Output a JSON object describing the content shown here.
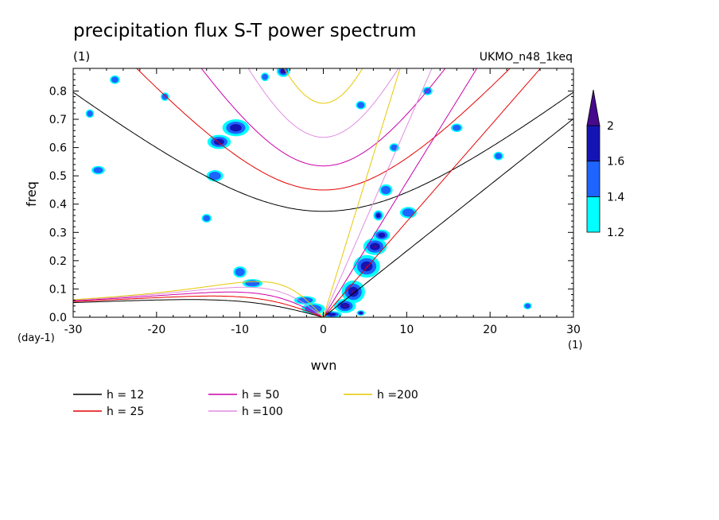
{
  "chart_data": {
    "type": "heatmap",
    "title": "precipitation flux S-T power spectrum",
    "units_label": "(1)",
    "model_label": "UKMO_n48_1keq",
    "xlabel": "wvn",
    "ylabel": "freq",
    "x_units_label": "(1)",
    "y_units_label": "(day-1)",
    "xlim": [
      -30,
      30
    ],
    "ylim": [
      0,
      0.88
    ],
    "x_ticks": [
      -30,
      -20,
      -10,
      0,
      10,
      20,
      30
    ],
    "x_tick_labels": [
      "-30",
      "-20",
      "-10",
      "0",
      "10",
      "20",
      "30"
    ],
    "y_ticks": [
      0,
      0.1,
      0.2,
      0.3,
      0.4,
      0.5,
      0.6,
      0.7,
      0.8
    ],
    "y_tick_labels": [
      "0.0",
      "0.1",
      "0.2",
      "0.3",
      "0.4",
      "0.5",
      "0.6",
      "0.7",
      "0.8"
    ],
    "colorbar": {
      "levels": [
        1.2,
        1.4,
        1.6,
        2
      ],
      "level_labels": [
        "1.2",
        "1.4",
        "1.6",
        "2"
      ],
      "colors": [
        "#00ffff",
        "#1e64ff",
        "#1414b4",
        "#460a8c"
      ]
    },
    "dispersion_curves": [
      {
        "label": "h = 12",
        "h": 12,
        "color": "#000000"
      },
      {
        "label": "h = 25",
        "h": 25,
        "color": "#e60000"
      },
      {
        "label": "h = 50",
        "h": 50,
        "color": "#cc00aa"
      },
      {
        "label": "h =100",
        "h": 100,
        "color": "#e08ce0"
      },
      {
        "label": "h =200",
        "h": 200,
        "color": "#e6c800"
      }
    ],
    "contour_blobs": [
      {
        "x": 6.2,
        "y": 0.25,
        "level": 3,
        "rx": 1.4,
        "ry": 0.03
      },
      {
        "x": 5.2,
        "y": 0.18,
        "level": 3,
        "rx": 1.6,
        "ry": 0.04
      },
      {
        "x": 3.6,
        "y": 0.09,
        "level": 3,
        "rx": 1.4,
        "ry": 0.04
      },
      {
        "x": 2.6,
        "y": 0.04,
        "level": 3,
        "rx": 1.3,
        "ry": 0.025
      },
      {
        "x": 7.0,
        "y": 0.29,
        "level": 2,
        "rx": 1.0,
        "ry": 0.02
      },
      {
        "x": 6.6,
        "y": 0.36,
        "level": 2,
        "rx": 0.6,
        "ry": 0.018
      },
      {
        "x": 10.2,
        "y": 0.37,
        "level": 1,
        "rx": 1.0,
        "ry": 0.02
      },
      {
        "x": 7.5,
        "y": 0.45,
        "level": 1,
        "rx": 0.8,
        "ry": 0.02
      },
      {
        "x": 1.0,
        "y": 0.01,
        "level": 2,
        "rx": 1.2,
        "ry": 0.012
      },
      {
        "x": -1.2,
        "y": 0.03,
        "level": 1,
        "rx": 1.4,
        "ry": 0.02
      },
      {
        "x": -2.2,
        "y": 0.06,
        "level": 1,
        "rx": 1.3,
        "ry": 0.015
      },
      {
        "x": -10.0,
        "y": 0.16,
        "level": 1,
        "rx": 0.8,
        "ry": 0.02
      },
      {
        "x": -8.5,
        "y": 0.12,
        "level": 1,
        "rx": 1.2,
        "ry": 0.015
      },
      {
        "x": -10.5,
        "y": 0.67,
        "level": 2,
        "rx": 1.6,
        "ry": 0.03
      },
      {
        "x": -12.5,
        "y": 0.62,
        "level": 2,
        "rx": 1.4,
        "ry": 0.025
      },
      {
        "x": -13.0,
        "y": 0.5,
        "level": 1,
        "rx": 1.0,
        "ry": 0.02
      },
      {
        "x": -4.8,
        "y": 0.87,
        "level": 3,
        "rx": 0.8,
        "ry": 0.02
      },
      {
        "x": -25.0,
        "y": 0.84,
        "level": 1,
        "rx": 0.6,
        "ry": 0.015
      },
      {
        "x": -28.0,
        "y": 0.72,
        "level": 1,
        "rx": 0.5,
        "ry": 0.015
      },
      {
        "x": -27.0,
        "y": 0.52,
        "level": 1,
        "rx": 0.8,
        "ry": 0.015
      },
      {
        "x": -14.0,
        "y": 0.35,
        "level": 1,
        "rx": 0.6,
        "ry": 0.015
      },
      {
        "x": 4.5,
        "y": 0.75,
        "level": 1,
        "rx": 0.6,
        "ry": 0.015
      },
      {
        "x": 12.5,
        "y": 0.8,
        "level": 1,
        "rx": 0.6,
        "ry": 0.015
      },
      {
        "x": 16.0,
        "y": 0.67,
        "level": 1,
        "rx": 0.7,
        "ry": 0.015
      },
      {
        "x": 21.0,
        "y": 0.57,
        "level": 1,
        "rx": 0.6,
        "ry": 0.015
      },
      {
        "x": 24.5,
        "y": 0.04,
        "level": 1,
        "rx": 0.5,
        "ry": 0.012
      },
      {
        "x": 4.5,
        "y": 0.015,
        "level": 2,
        "rx": 0.5,
        "ry": 0.01
      },
      {
        "x": 8.5,
        "y": 0.6,
        "level": 1,
        "rx": 0.6,
        "ry": 0.015
      },
      {
        "x": -19.0,
        "y": 0.78,
        "level": 1,
        "rx": 0.5,
        "ry": 0.015
      },
      {
        "x": -7.0,
        "y": 0.85,
        "level": 1,
        "rx": 0.5,
        "ry": 0.015
      }
    ]
  }
}
